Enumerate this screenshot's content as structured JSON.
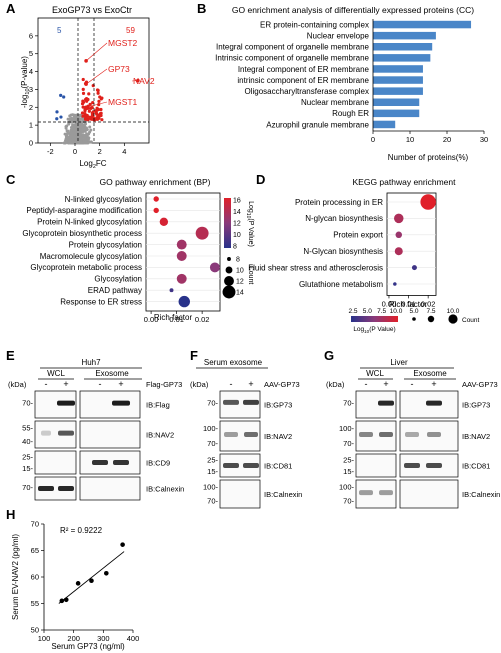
{
  "panelA": {
    "letter": "A",
    "title": "ExoGP73 vs ExoCtr",
    "count_down": "5",
    "count_up": "59",
    "ylabel_main": "-log",
    "ylabel_sub": "10",
    "ylabel_tail": "(P-value)",
    "xlabel_main": "Log",
    "xlabel_sub": "2",
    "xlabel_tail": "FC",
    "colors": {
      "up": "#e0201b",
      "down": "#2a55a8",
      "ns": "#9a9a9a"
    },
    "chart_data": {
      "type": "scatter",
      "title": "ExoGP73 vs ExoCtr",
      "xlim": [
        -3,
        6
      ],
      "ylim": [
        0,
        7
      ],
      "xticks": [
        "-2",
        "0",
        "2",
        "4"
      ],
      "yticks": [
        "0",
        "1",
        "2",
        "3",
        "4",
        "5",
        "6"
      ],
      "labeled_points": [
        {
          "label": "MGST2",
          "x": 0.9,
          "y": 4.6
        },
        {
          "label": "GP73",
          "x": 0.9,
          "y": 3.3
        },
        {
          "label": "NAV2",
          "x": 5.1,
          "y": 3.5
        },
        {
          "label": "MGST1",
          "x": 0.9,
          "y": 2.0
        }
      ]
    }
  },
  "panelB": {
    "letter": "B",
    "title": "GO enrichment analysis of differentially expressed proteins (CC)",
    "xlabel": "Number of proteins(%)",
    "bar_color": "#4a86c8",
    "chart_data": {
      "type": "bar",
      "categories": [
        "ER protein-containing complex",
        "Nuclear envelope",
        "Integral component of organelle membrane",
        "Intrinsic component of organelle membrane",
        "Integral component of ER membrane",
        "intrinsic component of ER membrane",
        "Oligosaccharyltransferase complex",
        "Nuclear membrane",
        "Rough ER",
        "Azurophil granule membrane"
      ],
      "values": [
        26.5,
        17,
        16,
        15.5,
        13.5,
        13.5,
        13.5,
        12.5,
        12.5,
        6
      ],
      "xlim": [
        0,
        30
      ],
      "xticks": [
        "0",
        "10",
        "20",
        "30"
      ]
    }
  },
  "panelC": {
    "letter": "C",
    "title": "GO pathway enrichment (BP)",
    "xlabel": "Rich factor",
    "cb_title_main": "Log",
    "cb_title_sub": "10",
    "cb_title_tail": "(P Value)",
    "size_title": "Count",
    "cb_ticks": [
      "16",
      "14",
      "12",
      "10",
      "8"
    ],
    "size_ticks": [
      "8",
      "10",
      "12",
      "14"
    ],
    "chart_data": {
      "type": "scatter",
      "categories": [
        "N-linked glycosylation",
        "Peptidyl-asparagine modification",
        "Protein N-linked glycosylation",
        "Glycoprotein biosynthetic process",
        "Protein glycosylation",
        "Macromolecule glycosylation",
        "Glycoprotein metabolic process",
        "Glycosylation",
        "ERAD pathway",
        "Response to ER stress"
      ],
      "x": [
        0.002,
        0.002,
        0.005,
        0.02,
        0.012,
        0.012,
        0.025,
        0.012,
        0.008,
        0.013
      ],
      "log10p": [
        16,
        16,
        15.5,
        14,
        13,
        13,
        12,
        13,
        9,
        8
      ],
      "count": [
        9,
        9,
        11,
        14,
        12,
        12,
        12,
        12,
        8,
        13
      ],
      "xlim": [
        -0.002,
        0.027
      ],
      "xticks": [
        "0.00",
        "0.01",
        "0.02"
      ]
    }
  },
  "panelD": {
    "letter": "D",
    "title": "KEGG pathway enrichment",
    "xlabel": "Rich factor",
    "legend_label_main": "Log",
    "legend_label_sub": "10",
    "legend_label_tail": "(P Value)",
    "legend_ticks": [
      "2.5",
      "5.0",
      "7.5",
      "10.0"
    ],
    "size_ticks": [
      "5.0",
      "7.5",
      "10.0"
    ],
    "size_title": "Count",
    "chart_data": {
      "type": "scatter",
      "categories": [
        "Protein processing in ER",
        "N-glycan biosynthesis",
        "Protein export",
        "N-Glycan biosynthesis",
        "Fluid shear stress and atherosclerosis",
        "Glutathione metabolism"
      ],
      "x": [
        0.02,
        0.005,
        0.005,
        0.005,
        0.013,
        0.003
      ],
      "log10p": [
        10.5,
        8,
        7,
        8,
        3,
        2.5
      ],
      "count": [
        12,
        8,
        6,
        7,
        5,
        4
      ],
      "xlim": [
        -0.001,
        0.024
      ],
      "xticks": [
        "0.00",
        "0.01",
        "0.02"
      ]
    }
  },
  "panelE": {
    "letter": "E",
    "header": "Huh7",
    "group1": "WCL",
    "group2": "Exosome",
    "treatment": "Flag-GP73",
    "kda": "(kDa)",
    "signs": [
      "-",
      "+",
      "-",
      "+"
    ],
    "blots": [
      {
        "label": "IB:Flag",
        "markers": [
          "70-"
        ]
      },
      {
        "label": "IB:NAV2",
        "markers": [
          "55-",
          "40-"
        ]
      },
      {
        "label": "IB:CD9",
        "markers": [
          "25-",
          "15-"
        ]
      },
      {
        "label": "IB:Calnexin",
        "markers": [
          "70-"
        ]
      }
    ]
  },
  "panelF": {
    "letter": "F",
    "header": "Serum exosome",
    "treatment": "AAV-GP73",
    "kda": "(kDa)",
    "signs": [
      "-",
      "+"
    ],
    "blots": [
      {
        "label": "IB:GP73",
        "markers": [
          "70-"
        ]
      },
      {
        "label": "IB:NAV2",
        "markers": [
          "100-",
          "70-"
        ]
      },
      {
        "label": "IB:CD81",
        "markers": [
          "25-",
          "15-"
        ]
      },
      {
        "label": "IB:Calnexin",
        "markers": [
          "100-",
          "70-"
        ]
      }
    ]
  },
  "panelG": {
    "letter": "G",
    "header": "Liver",
    "group1": "WCL",
    "group2": "Exosome",
    "treatment": "AAV-GP73",
    "kda": "(kDa)",
    "signs": [
      "-",
      "+",
      "-",
      "+"
    ],
    "blots": [
      {
        "label": "IB:GP73",
        "markers": [
          "70-"
        ]
      },
      {
        "label": "IB:NAV2",
        "markers": [
          "100-",
          "70-"
        ]
      },
      {
        "label": "IB:CD81",
        "markers": [
          "25-",
          "15-"
        ]
      },
      {
        "label": "IB:Calnexin",
        "markers": [
          "100-",
          "70-"
        ]
      }
    ]
  },
  "panelH": {
    "letter": "H",
    "r2": "R² = 0.9222",
    "chart_data": {
      "type": "scatter",
      "x": [
        160,
        175,
        215,
        260,
        310,
        365
      ],
      "y": [
        55.5,
        55.7,
        58.8,
        59.3,
        60.7,
        66.1
      ],
      "fit": {
        "x": [
          150,
          370
        ],
        "y": [
          55.0,
          64.8
        ]
      },
      "xlim": [
        100,
        400
      ],
      "ylim": [
        50,
        70
      ],
      "xticks": [
        "100",
        "200",
        "300",
        "400"
      ],
      "yticks": [
        "50",
        "55",
        "60",
        "65",
        "70"
      ],
      "xlabel": "Serum GP73 (ng/ml)",
      "ylabel": "Serum EV-NAV2 (pg/ml)"
    }
  }
}
